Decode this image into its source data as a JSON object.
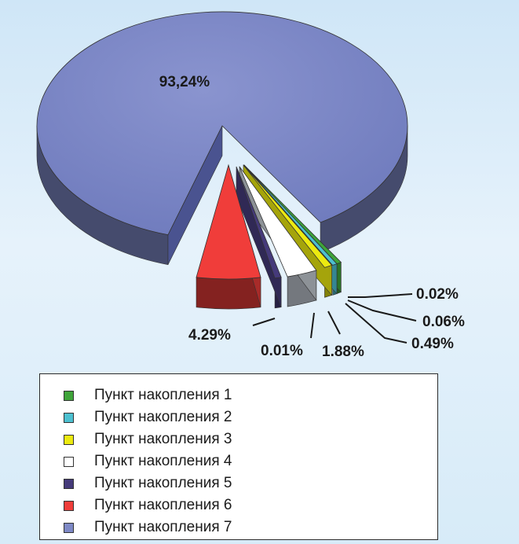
{
  "chart_data": {
    "type": "pie",
    "title": "",
    "slices": [
      {
        "label": "Пункт накопления 1",
        "value": 0.02,
        "value_label": "0.02%",
        "color": "#3fa43a"
      },
      {
        "label": "Пункт накопления 2",
        "value": 0.06,
        "value_label": "0.06%",
        "color": "#4cc0d0"
      },
      {
        "label": "Пункт накопления 3",
        "value": 0.49,
        "value_label": "0.49%",
        "color": "#ecea10"
      },
      {
        "label": "Пункт накопления 4",
        "value": 1.88,
        "value_label": "1.88%",
        "color": "#ffffff"
      },
      {
        "label": "Пункт накопления 5",
        "value": 0.01,
        "value_label": "0.01%",
        "color": "#453a7a"
      },
      {
        "label": "Пункт накопления 6",
        "value": 4.29,
        "value_label": "4.29%",
        "color": "#f03d3a"
      },
      {
        "label": "Пункт накопления 7",
        "value": 93.24,
        "value_label": "93,24%",
        "color": "#7e89c6"
      }
    ],
    "legend_position": "bottom",
    "style": "3d-exploded"
  }
}
